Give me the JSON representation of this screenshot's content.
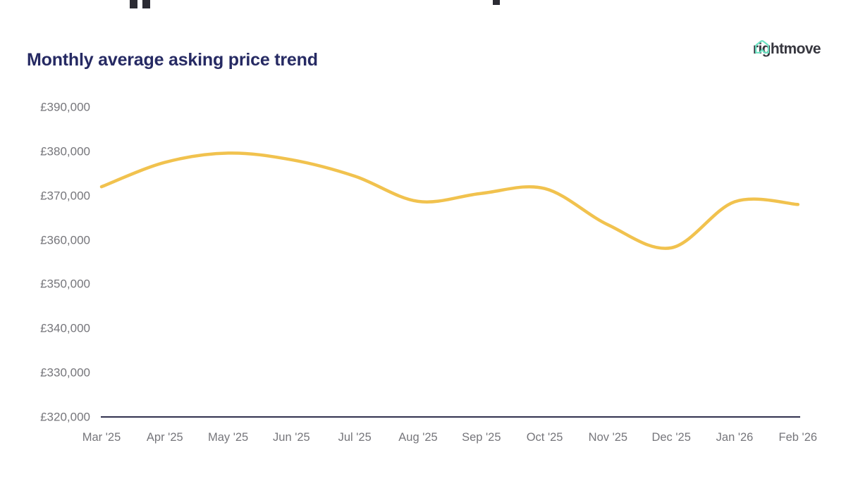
{
  "header": {
    "title": "Monthly average asking price trend",
    "title_color": "#262a63"
  },
  "logo": {
    "text": "rightmove",
    "text_color": "#37373f",
    "icon": "rightmove-house-icon",
    "icon_color": "#6ce2c2"
  },
  "chart_data": {
    "type": "line",
    "title": "Monthly average asking price trend",
    "categories": [
      "Mar '25",
      "Apr '25",
      "May '25",
      "Jun '25",
      "Jul '25",
      "Aug '25",
      "Sep '25",
      "Oct '25",
      "Nov '25",
      "Dec '25",
      "Jan '26",
      "Feb '26"
    ],
    "values": [
      372000,
      377500,
      379600,
      378100,
      374400,
      368700,
      370500,
      371600,
      363400,
      358200,
      368600,
      368000
    ],
    "xlabel": "",
    "ylabel": "",
    "y_tick_labels": [
      "£390,000",
      "£380,000",
      "£370,000",
      "£360,000",
      "£350,000",
      "£340,000",
      "£330,000",
      "£320,000"
    ],
    "y_tick_values": [
      390000,
      380000,
      370000,
      360000,
      350000,
      340000,
      330000,
      320000
    ],
    "ylim": [
      320000,
      390000
    ],
    "currency": "£",
    "grid": "off",
    "legend": "none",
    "line_color": "#F1C24E",
    "axis_line_color": "#32324f",
    "tick_label_color": "#76767b"
  }
}
